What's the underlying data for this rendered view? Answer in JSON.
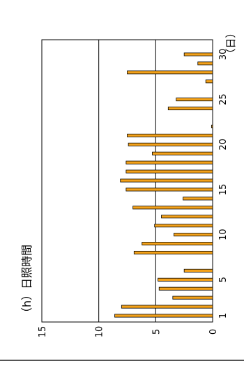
{
  "chart_data": {
    "type": "bar",
    "orientation": "horizontal",
    "title": "（h）日照時間",
    "xlabel": "（日）",
    "ylabel": "",
    "unit_y": "（h）",
    "ylim": [
      0,
      15
    ],
    "y_ticks": [
      "0",
      "5",
      "10",
      "15"
    ],
    "x_ticks": [
      "1",
      "5",
      "10",
      "15",
      "20",
      "25",
      "30"
    ],
    "grid": true,
    "legend": "none",
    "bar_color": "#f4a21a",
    "bar_edge_color": "#000000",
    "categories": [
      1,
      2,
      3,
      4,
      5,
      6,
      7,
      8,
      9,
      10,
      11,
      12,
      13,
      14,
      15,
      16,
      17,
      18,
      19,
      20,
      21,
      22,
      23,
      24,
      25,
      26,
      27,
      28,
      29,
      30
    ],
    "values": [
      8.6,
      8.0,
      3.5,
      4.7,
      4.8,
      2.5,
      0.0,
      6.9,
      6.2,
      3.4,
      5.1,
      4.5,
      7.0,
      2.6,
      7.6,
      8.1,
      7.6,
      7.6,
      5.3,
      7.4,
      7.5,
      0.1,
      0.0,
      3.9,
      3.2,
      0.0,
      0.6,
      7.5,
      1.3,
      2.5
    ]
  }
}
